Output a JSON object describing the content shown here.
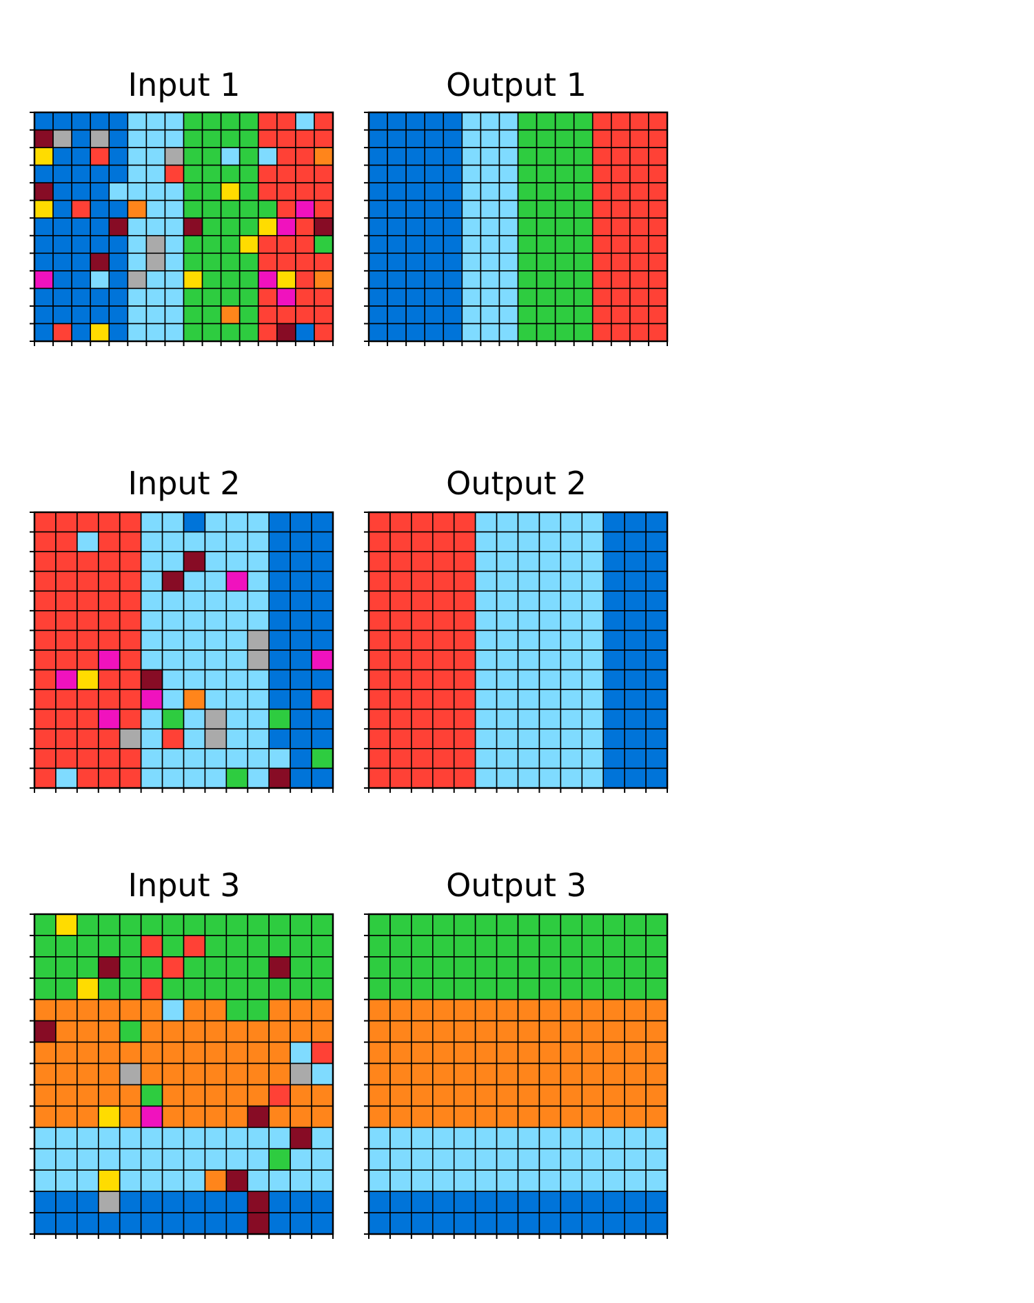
{
  "palette": {
    "0": "#000000",
    "1": "#0074D9",
    "2": "#FF4136",
    "3": "#2ECC40",
    "4": "#FFDC00",
    "5": "#AAAAAA",
    "6": "#F012BE",
    "7": "#FF851B",
    "8": "#7FDBFF",
    "9": "#870C25"
  },
  "pairs": [
    {
      "input": {
        "title": "Input 1",
        "grid": [
          "1111188833332282",
          "9515188833332222",
          "4112188533838227",
          "1111188233332222",
          "9111888833432222",
          "4121178833333262",
          "1111988893334629",
          "1111185833342223",
          "1119185833332222",
          "6118158843336427",
          "1111188833332622",
          "1111188833732222",
          "1214188833332912"
        ]
      },
      "output": {
        "title": "Output 1",
        "grid": [
          "1111188833332222",
          "1111188833332222",
          "1111188833332222",
          "1111188833332222",
          "1111188833332222",
          "1111188833332222",
          "1111188833332222",
          "1111188833332222",
          "1111188833332222",
          "1111188833332222",
          "1111188833332222",
          "1111188833332222",
          "1111188833332222"
        ]
      }
    },
    {
      "input": {
        "title": "Input 2",
        "grid": [
          "22222881888111",
          "22822888888111",
          "22222889888111",
          "22222898868111",
          "22222888888111",
          "22222888888111",
          "22222888885111",
          "22262888885116",
          "26422988888111",
          "22222687888112",
          "22262838588311",
          "22225828588111",
          "22222888888813",
          "28222888838911"
        ]
      },
      "output": {
        "title": "Output 2",
        "grid": [
          "22222888888111",
          "22222888888111",
          "22222888888111",
          "22222888888111",
          "22222888888111",
          "22222888888111",
          "22222888888111",
          "22222888888111",
          "22222888888111",
          "22222888888111",
          "22222888888111",
          "22222888888111",
          "22222888888111",
          "22222888888111"
        ]
      }
    },
    {
      "input": {
        "title": "Input 3",
        "grid": [
          "34333333333333",
          "33333232333333",
          "33393323333933",
          "33433233333333",
          "77777787733777",
          "97773777777777",
          "77777777777782",
          "77775777777758",
          "77777377777277",
          "77747677779777",
          "88888888888898",
          "88888888888388",
          "88848888798888",
          "11151111119111",
          "11111111119111"
        ]
      },
      "output": {
        "title": "Output 3",
        "grid": [
          "33333333333333",
          "33333333333333",
          "33333333333333",
          "33333333333333",
          "77777777777777",
          "77777777777777",
          "77777777777777",
          "77777777777777",
          "77777777777777",
          "77777777777777",
          "88888888888888",
          "88888888888888",
          "88888888888888",
          "11111111111111",
          "11111111111111"
        ]
      }
    }
  ]
}
